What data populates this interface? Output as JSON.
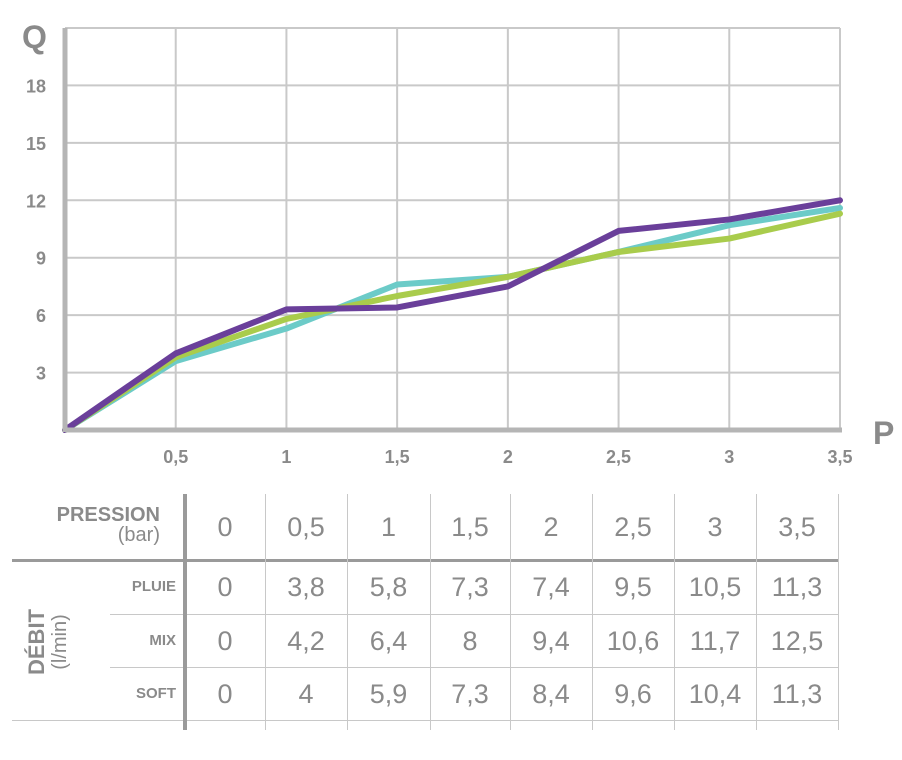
{
  "chart_data": {
    "type": "line",
    "ylabel": "Q",
    "xlabel": "P",
    "x": [
      0,
      0.5,
      1,
      1.5,
      2,
      2.5,
      3,
      3.5
    ],
    "x_tick_labels": [
      "0,5",
      "1",
      "1,5",
      "2",
      "2,5",
      "3",
      "3,5"
    ],
    "y_ticks": [
      3,
      6,
      9,
      12,
      15,
      18
    ],
    "xlim": [
      0,
      3.5
    ],
    "ylim": [
      0,
      21
    ],
    "grid": true,
    "series": [
      {
        "values": [
          0,
          3.6,
          5.3,
          7.6,
          8.0,
          9.3,
          10.7,
          11.6
        ],
        "color": "#6ccbc8"
      },
      {
        "values": [
          0,
          3.8,
          5.8,
          7.0,
          8.0,
          9.3,
          10.0,
          11.3
        ],
        "color": "#a9cc4c"
      },
      {
        "values": [
          0,
          4.0,
          6.3,
          6.4,
          7.5,
          10.4,
          11.0,
          12.0
        ],
        "color": "#6a3f9a"
      }
    ]
  },
  "table": {
    "pression_label": "PRESSION",
    "pression_unit": "(bar)",
    "pressures": [
      "0",
      "0,5",
      "1",
      "1,5",
      "2",
      "2,5",
      "3",
      "3,5"
    ],
    "debit_label": "DÉBIT",
    "debit_unit": "(l/min)",
    "rows": [
      {
        "label": "PLUIE",
        "values": [
          "0",
          "3,8",
          "5,8",
          "7,3",
          "7,4",
          "9,5",
          "10,5",
          "11,3"
        ]
      },
      {
        "label": "MIX",
        "values": [
          "0",
          "4,2",
          "6,4",
          "8",
          "9,4",
          "10,6",
          "11,7",
          "12,5"
        ]
      },
      {
        "label": "SOFT",
        "values": [
          "0",
          "4",
          "5,9",
          "7,3",
          "8,4",
          "9,6",
          "10,4",
          "11,3"
        ]
      }
    ]
  }
}
